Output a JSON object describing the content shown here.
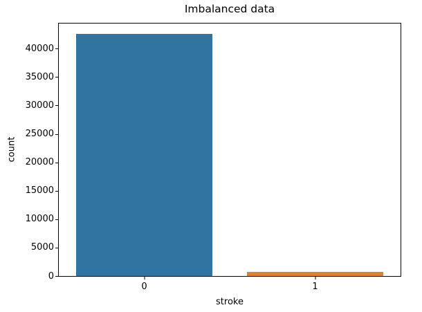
{
  "chart_data": {
    "type": "bar",
    "title": "Imbalanced data",
    "xlabel": "stroke",
    "ylabel": "count",
    "categories": [
      "0",
      "1"
    ],
    "values": [
      42617,
      783
    ],
    "bar_colors": [
      "#3274a1",
      "#e1812c"
    ],
    "ylim": [
      0,
      44420
    ],
    "yticks": [
      0,
      5000,
      10000,
      15000,
      20000,
      25000,
      30000,
      35000,
      40000
    ],
    "grid": false,
    "legend": null,
    "bar_width_fraction": 0.8,
    "spine_color": "#000000",
    "background_color": "#ffffff"
  }
}
